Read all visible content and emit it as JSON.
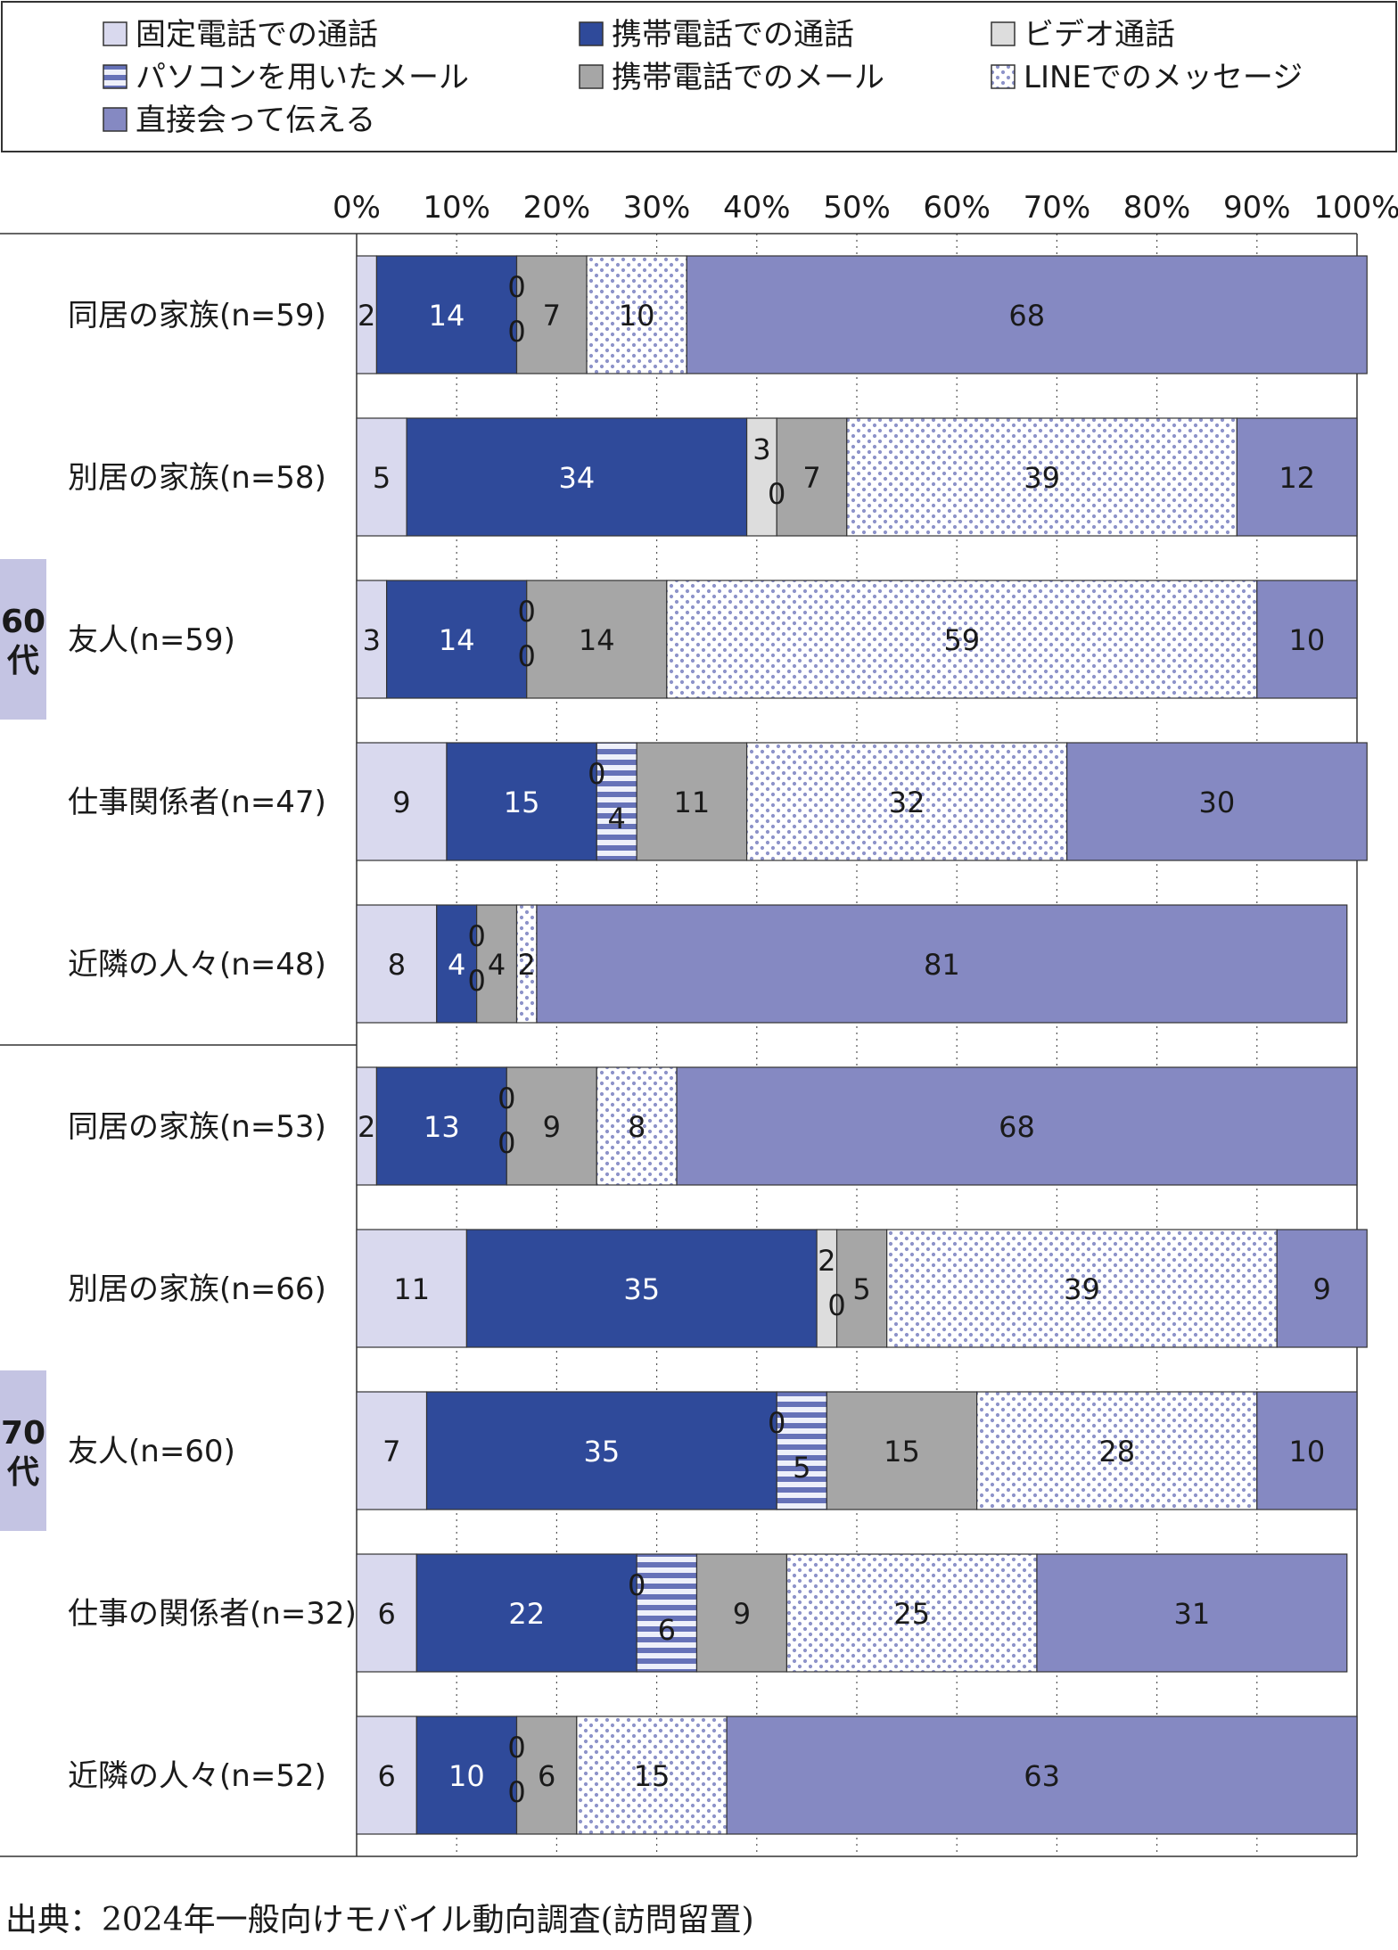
{
  "chart_data": {
    "type": "bar",
    "orientation": "horizontal",
    "stacked": true,
    "percent": true,
    "xlim": [
      0,
      100
    ],
    "x_ticks": [
      "0%",
      "10%",
      "20%",
      "30%",
      "40%",
      "50%",
      "60%",
      "70%",
      "80%",
      "90%",
      "100%"
    ],
    "grid": "vertical dotted",
    "legend_position": "top",
    "series": [
      {
        "name": "固定電話での通話",
        "color": "#d9d9ee",
        "pattern": "none"
      },
      {
        "name": "携帯電話での通話",
        "color": "#2f4a9a",
        "pattern": "none"
      },
      {
        "name": "ビデオ通話",
        "color": "#dddddd",
        "pattern": "none"
      },
      {
        "name": "パソコンを用いたメール",
        "color": "#6672b8",
        "pattern": "horizontal-stripes"
      },
      {
        "name": "携帯電話でのメール",
        "color": "#a6a6a6",
        "pattern": "none"
      },
      {
        "name": "LINEでのメッセージ",
        "color": "#8d93c9",
        "pattern": "dots"
      },
      {
        "name": "直接会って伝える",
        "color": "#8589c2",
        "pattern": "none"
      }
    ],
    "groups": [
      {
        "label": "60代",
        "rows": [
          {
            "label": "同居の家族(n=59)",
            "values": [
              2,
              14,
              0,
              0,
              7,
              10,
              68
            ]
          },
          {
            "label": "別居の家族(n=58)",
            "values": [
              5,
              34,
              3,
              0,
              7,
              39,
              12
            ]
          },
          {
            "label": "友人(n=59)",
            "values": [
              3,
              14,
              0,
              0,
              14,
              59,
              10
            ]
          },
          {
            "label": "仕事関係者(n=47)",
            "values": [
              9,
              15,
              0,
              4,
              11,
              32,
              30
            ]
          },
          {
            "label": "近隣の人々(n=48)",
            "values": [
              8,
              4,
              0,
              0,
              4,
              2,
              81
            ]
          }
        ]
      },
      {
        "label": "70代",
        "rows": [
          {
            "label": "同居の家族(n=53)",
            "values": [
              2,
              13,
              0,
              0,
              9,
              8,
              68
            ]
          },
          {
            "label": "別居の家族(n=66)",
            "values": [
              11,
              35,
              2,
              0,
              5,
              39,
              9
            ]
          },
          {
            "label": "友人(n=60)",
            "values": [
              7,
              35,
              0,
              5,
              15,
              28,
              10
            ]
          },
          {
            "label": "仕事の関係者(n=32)",
            "values": [
              6,
              22,
              0,
              6,
              9,
              25,
              31
            ]
          },
          {
            "label": "近隣の人々(n=52)",
            "values": [
              6,
              10,
              0,
              0,
              6,
              15,
              63
            ]
          }
        ]
      }
    ]
  },
  "source_text": "出典：2024年一般向けモバイル動向調査(訪問留置)"
}
